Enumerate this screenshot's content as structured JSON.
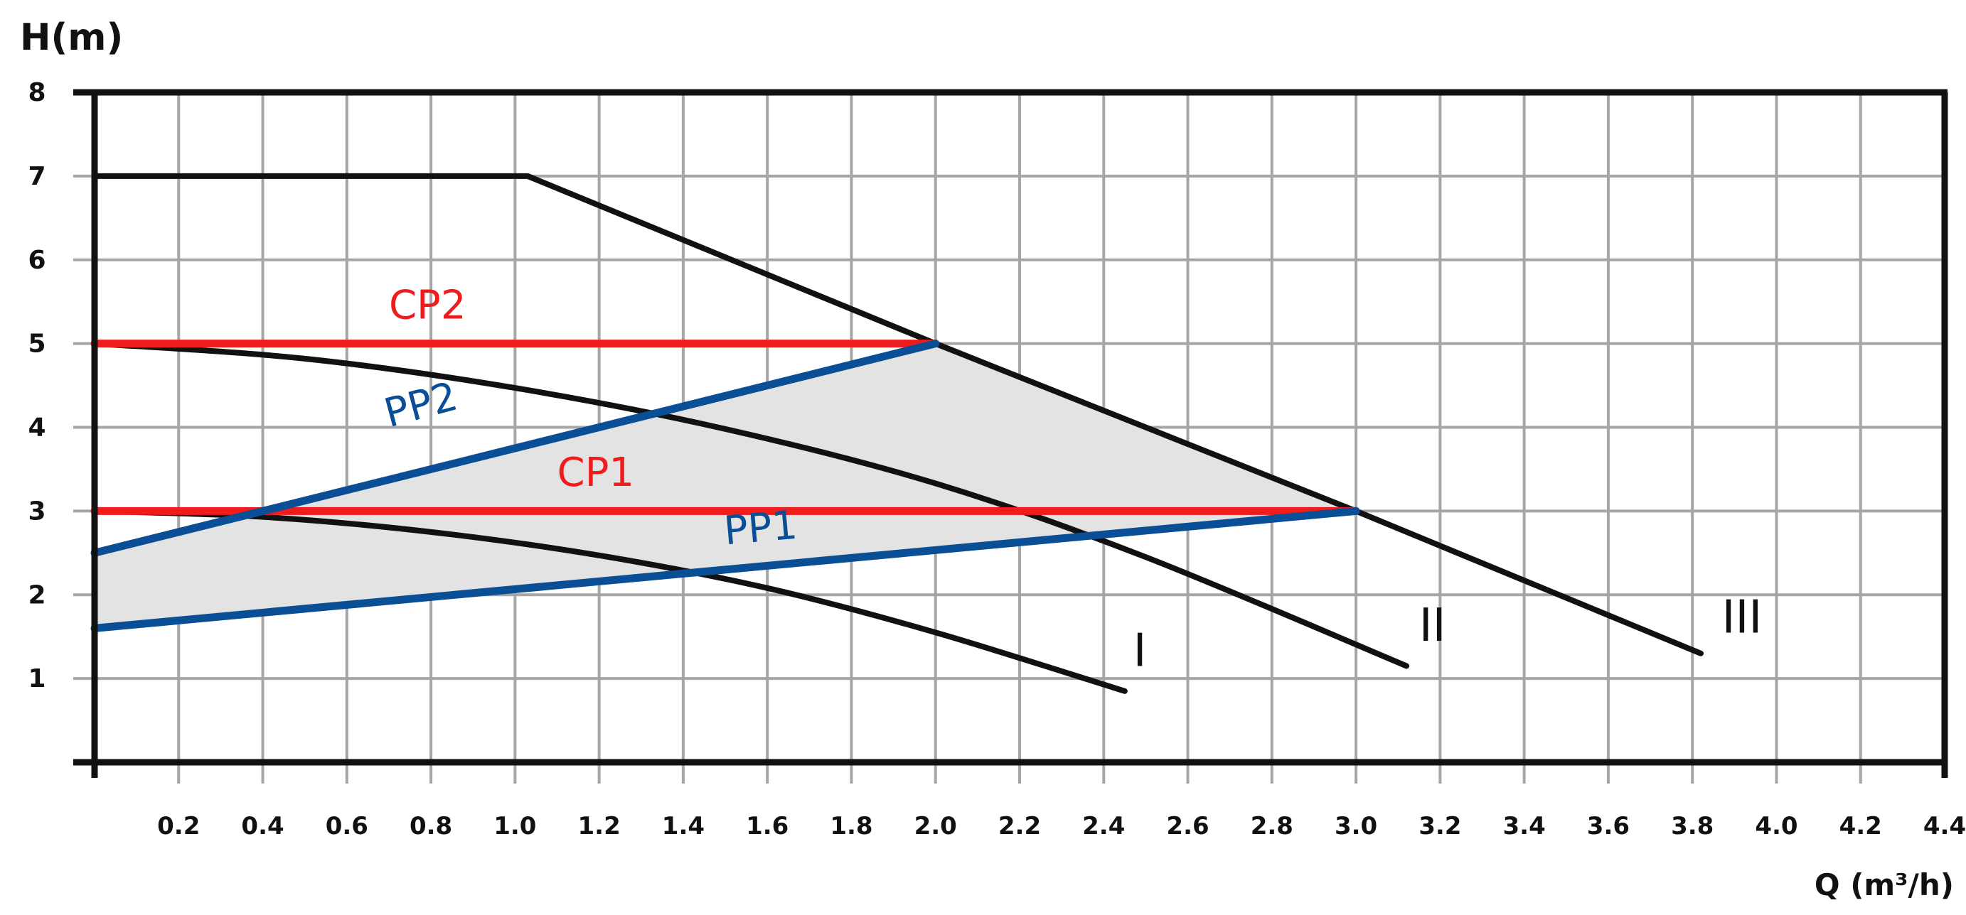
{
  "chart_data": {
    "type": "line",
    "title": "",
    "ylabel": "H(m)",
    "xlabel": "Q (m³/h)",
    "xlim": [
      0,
      4.4
    ],
    "ylim": [
      0,
      8
    ],
    "grid": true,
    "x_ticks": [
      "0.2",
      "0.4",
      "0.6",
      "0.8",
      "1.0",
      "1.2",
      "1.4",
      "1.6",
      "1.8",
      "2.0",
      "2.2",
      "2.4",
      "2.6",
      "2.8",
      "3.0",
      "3.2",
      "3.4",
      "3.6",
      "3.8",
      "4.0",
      "4.2",
      "4.4"
    ],
    "y_ticks": [
      "1",
      "2",
      "3",
      "4",
      "5",
      "6",
      "7",
      "8"
    ],
    "colors": {
      "curve": "#111111",
      "constant_pressure": "#ee1c1c",
      "proportional_pressure": "#0a4f96",
      "region": "#e3e3e3",
      "grid": "#a6a6a6"
    },
    "shaded_region": [
      [
        0,
        2.5
      ],
      [
        2.0,
        5.0
      ],
      [
        3.0,
        3.0
      ],
      [
        0,
        1.6
      ]
    ],
    "series": [
      {
        "name": "I",
        "color": "#111111",
        "x": [
          0,
          0.4,
          0.8,
          1.2,
          1.6,
          2.0,
          2.45
        ],
        "y": [
          3.0,
          2.93,
          2.75,
          2.47,
          2.08,
          1.55,
          0.85
        ]
      },
      {
        "name": "II",
        "color": "#111111",
        "x": [
          0,
          0.5,
          1.0,
          1.5,
          2.0,
          2.5,
          3.12
        ],
        "y": [
          5.0,
          4.82,
          4.47,
          3.98,
          3.33,
          2.45,
          1.15
        ]
      },
      {
        "name": "III",
        "color": "#111111",
        "x": [
          0,
          1.03,
          2.0,
          3.0,
          3.82
        ],
        "y": [
          7.0,
          7.0,
          5.0,
          3.0,
          1.3
        ]
      },
      {
        "name": "CP2",
        "color": "#ee1c1c",
        "x": [
          0,
          2.0
        ],
        "y": [
          5.0,
          5.0
        ]
      },
      {
        "name": "CP1",
        "color": "#ee1c1c",
        "x": [
          0,
          3.0
        ],
        "y": [
          3.0,
          3.0
        ]
      },
      {
        "name": "PP2",
        "color": "#0a4f96",
        "x": [
          0,
          2.0
        ],
        "y": [
          2.5,
          5.0
        ]
      },
      {
        "name": "PP1",
        "color": "#0a4f96",
        "x": [
          0,
          3.0
        ],
        "y": [
          1.6,
          3.0
        ]
      }
    ],
    "annotations": [
      {
        "text": "CP2",
        "color": "#ee1c1c",
        "x": 0.7,
        "y": 5.3,
        "angle": 0
      },
      {
        "text": "CP1",
        "color": "#ee1c1c",
        "x": 1.1,
        "y": 3.3,
        "angle": 0
      },
      {
        "text": "PP2",
        "color": "#0a4f96",
        "x": 0.7,
        "y": 4.0,
        "angle": -15
      },
      {
        "text": "PP1",
        "color": "#0a4f96",
        "x": 1.5,
        "y": 2.6,
        "angle": -5
      },
      {
        "text": "I",
        "color": "#111111",
        "x": 2.47,
        "y": 1.15,
        "angle": 0
      },
      {
        "text": "II",
        "color": "#111111",
        "x": 3.15,
        "y": 1.45,
        "angle": 0
      },
      {
        "text": "III",
        "color": "#111111",
        "x": 3.87,
        "y": 1.55,
        "angle": 0
      }
    ]
  }
}
